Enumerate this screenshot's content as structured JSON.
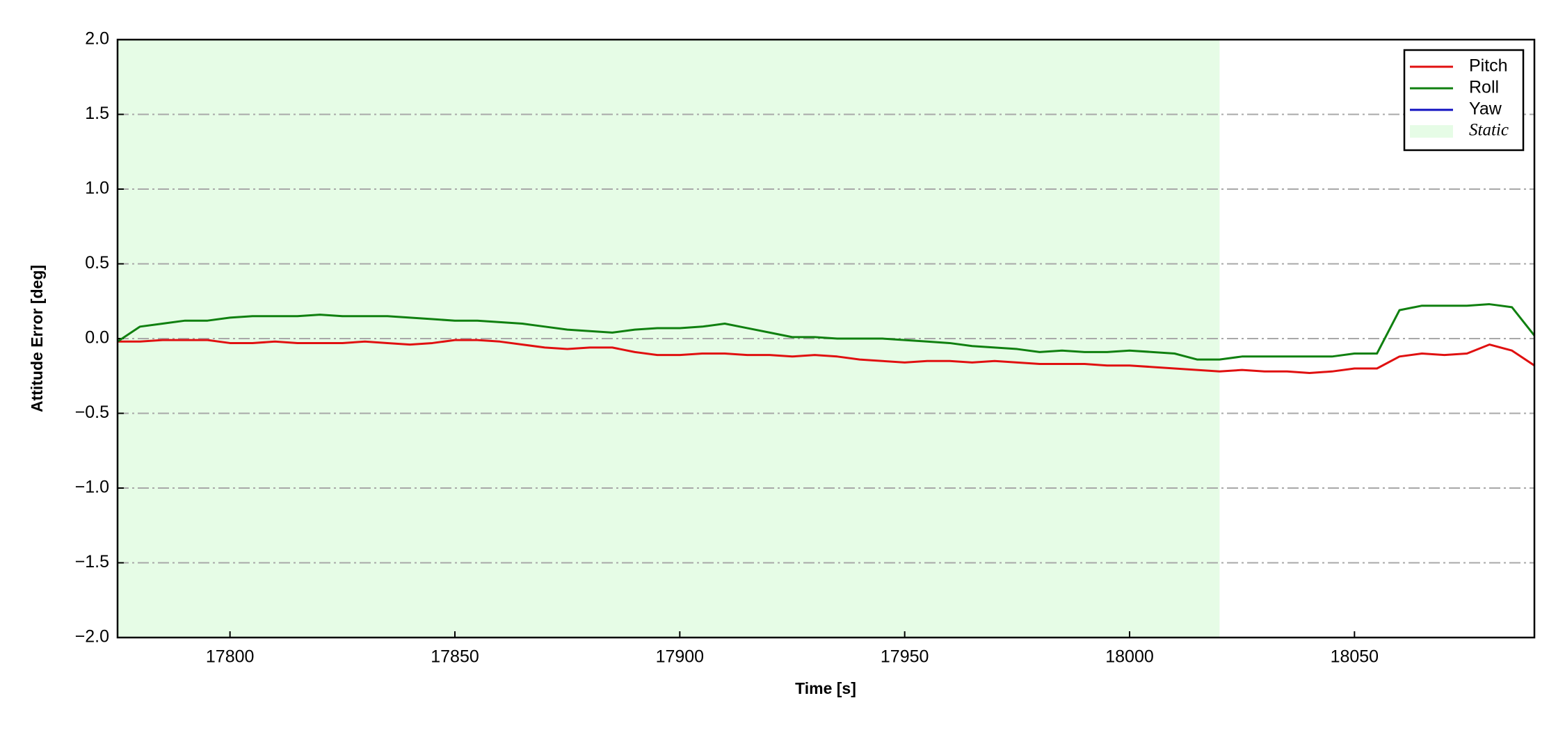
{
  "chart_data": {
    "type": "line",
    "xlabel": "Time [s]",
    "ylabel": "Attitude Error [deg]",
    "x": [
      17775,
      17780,
      17785,
      17790,
      17795,
      17800,
      17805,
      17810,
      17815,
      17820,
      17825,
      17830,
      17835,
      17840,
      17845,
      17850,
      17855,
      17860,
      17865,
      17870,
      17875,
      17880,
      17885,
      17890,
      17895,
      17900,
      17905,
      17910,
      17915,
      17920,
      17925,
      17930,
      17935,
      17940,
      17945,
      17950,
      17955,
      17960,
      17965,
      17970,
      17975,
      17980,
      17985,
      17990,
      17995,
      18000,
      18005,
      18010,
      18015,
      18020,
      18025,
      18030,
      18035,
      18040,
      18045,
      18050,
      18055,
      18060,
      18065,
      18070,
      18075,
      18080,
      18085,
      18090
    ],
    "series": [
      {
        "name": "Pitch",
        "color": "#e01010",
        "values": [
          -0.02,
          -0.02,
          -0.01,
          -0.01,
          -0.01,
          -0.03,
          -0.03,
          -0.02,
          -0.03,
          -0.03,
          -0.03,
          -0.02,
          -0.03,
          -0.04,
          -0.03,
          -0.01,
          -0.01,
          -0.02,
          -0.04,
          -0.06,
          -0.07,
          -0.06,
          -0.06,
          -0.09,
          -0.11,
          -0.11,
          -0.1,
          -0.1,
          -0.11,
          -0.11,
          -0.12,
          -0.11,
          -0.12,
          -0.14,
          -0.15,
          -0.16,
          -0.15,
          -0.15,
          -0.16,
          -0.15,
          -0.16,
          -0.17,
          -0.17,
          -0.17,
          -0.18,
          -0.18,
          -0.19,
          -0.2,
          -0.21,
          -0.22,
          -0.21,
          -0.22,
          -0.22,
          -0.23,
          -0.22,
          -0.2,
          -0.2,
          -0.12,
          -0.1,
          -0.11,
          -0.1,
          -0.04,
          -0.08,
          -0.18
        ]
      },
      {
        "name": "Roll",
        "color": "#108010",
        "values": [
          -0.02,
          0.08,
          0.1,
          0.12,
          0.12,
          0.14,
          0.15,
          0.15,
          0.15,
          0.16,
          0.15,
          0.15,
          0.15,
          0.14,
          0.13,
          0.12,
          0.12,
          0.11,
          0.1,
          0.08,
          0.06,
          0.05,
          0.04,
          0.06,
          0.07,
          0.07,
          0.08,
          0.1,
          0.07,
          0.04,
          0.01,
          0.01,
          0.0,
          0.0,
          0.0,
          -0.01,
          -0.02,
          -0.03,
          -0.05,
          -0.06,
          -0.07,
          -0.09,
          -0.08,
          -0.09,
          -0.09,
          -0.08,
          -0.09,
          -0.1,
          -0.14,
          -0.14,
          -0.12,
          -0.12,
          -0.12,
          -0.12,
          -0.12,
          -0.1,
          -0.1,
          0.19,
          0.22,
          0.22,
          0.22,
          0.23,
          0.21,
          0.02
        ]
      },
      {
        "name": "Yaw",
        "color": "#1010c0",
        "values": [
          null,
          null,
          null,
          null,
          null,
          null,
          null,
          null,
          null,
          null,
          null,
          null,
          null,
          null,
          null,
          null,
          null,
          null,
          null,
          null,
          null,
          null,
          null,
          null,
          null,
          null,
          null,
          null,
          null,
          null,
          null,
          null,
          null,
          null,
          null,
          null,
          null,
          null,
          null,
          null,
          null,
          null,
          null,
          null,
          null,
          null,
          null,
          null,
          null,
          null,
          null,
          null,
          null,
          null,
          null,
          null,
          null,
          null,
          null,
          null,
          null,
          null,
          null,
          null
        ]
      }
    ],
    "span": {
      "name": "Static",
      "start": 17775,
      "end": 18020,
      "color": "#e6fce6"
    },
    "xlim": [
      17775,
      18090
    ],
    "ylim": [
      -2,
      2
    ],
    "xticks": [
      17800,
      17850,
      17900,
      17950,
      18000,
      18050
    ],
    "yticks": [
      {
        "value": -2,
        "label": "−2.0"
      },
      {
        "value": -1.5,
        "label": "−1.5"
      },
      {
        "value": -1,
        "label": "−1.0"
      },
      {
        "value": -0.5,
        "label": "−0.5"
      },
      {
        "value": 0,
        "label": "0.0"
      },
      0.5,
      {
        "value": 1,
        "label": "1.0"
      },
      1.5,
      {
        "value": 2,
        "label": "2.0"
      }
    ],
    "grid": true,
    "legend": "upper right"
  }
}
